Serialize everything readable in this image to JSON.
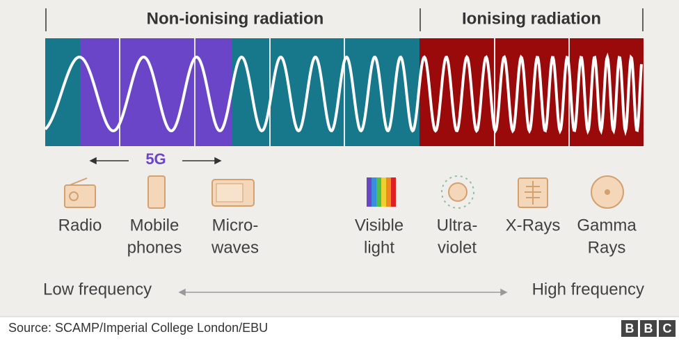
{
  "header": {
    "non_ionising": "Non-ionising radiation",
    "ionising": "Ionising radiation"
  },
  "band_label": "5G",
  "items": [
    {
      "lines": [
        "Radio"
      ]
    },
    {
      "lines": [
        "Mobile",
        "phones"
      ]
    },
    {
      "lines": [
        "Micro-",
        "waves"
      ]
    },
    {
      "lines": [
        "Visible",
        "light"
      ]
    },
    {
      "lines": [
        "Ultra-",
        "violet"
      ]
    },
    {
      "lines": [
        "X-Rays"
      ]
    },
    {
      "lines": [
        "Gamma",
        "Rays"
      ]
    }
  ],
  "axis": {
    "low": "Low frequency",
    "high": "High frequency"
  },
  "footer": {
    "source": "Source: SCAMP/Imperial College London/EBU",
    "logo": [
      "B",
      "B",
      "C"
    ]
  }
}
